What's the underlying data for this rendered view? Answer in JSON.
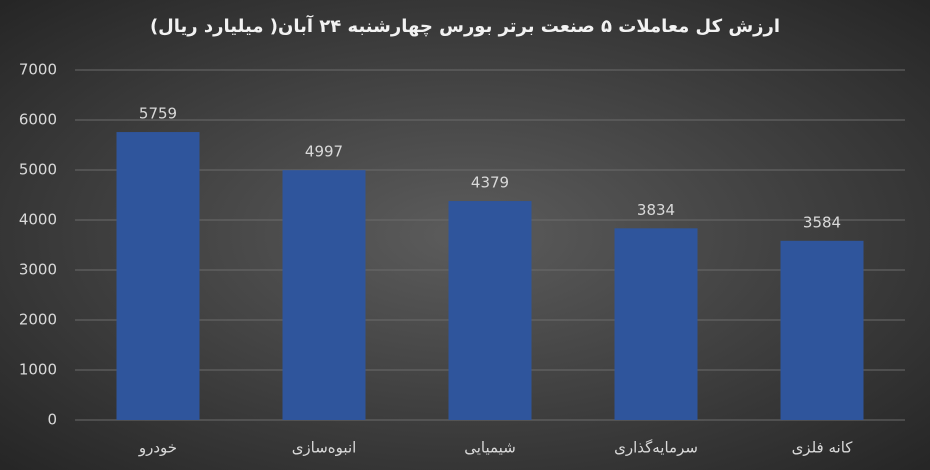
{
  "chart_data": {
    "type": "bar",
    "title": "ارزش کل معاملات ۵ صنعت برتر بورس چهارشنبه ۲۴ آبان( میلیارد ریال)",
    "categories": [
      "خودرو",
      "انبوه‌سازی",
      "شیمیایی",
      "سرمایه‌گذاری",
      "کانه فلزی"
    ],
    "values": [
      5759,
      4997,
      4379,
      3834,
      3584
    ],
    "color": "#2f559c",
    "ylim": [
      0,
      7000
    ],
    "yticks": [
      0,
      1000,
      2000,
      3000,
      4000,
      5000,
      6000,
      7000
    ],
    "grid": true
  }
}
